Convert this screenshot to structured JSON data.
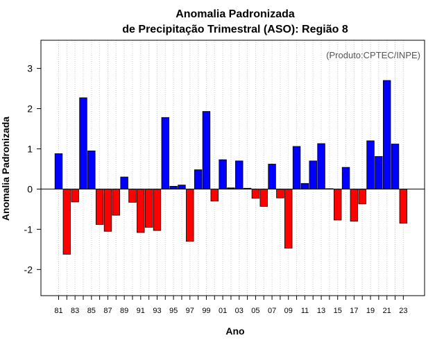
{
  "chart_data": {
    "type": "bar",
    "title_line1": "Anomalia Padronizada",
    "title_line2": "de Precipitação Trimestral (ASO): Região 8",
    "xlabel": "Ano",
    "ylabel": "Anomalia Padronizada",
    "credit": "(Produto:CPTEC/INPE)",
    "ylim": [
      -2.65,
      3.7
    ],
    "yticks": [
      "-2",
      "-1",
      "0",
      "1",
      "2",
      "3"
    ],
    "xtick_labels": [
      "81",
      "83",
      "85",
      "87",
      "89",
      "91",
      "93",
      "95",
      "97",
      "99",
      "01",
      "03",
      "05",
      "07",
      "09",
      "11",
      "13",
      "15",
      "17",
      "19",
      "21",
      "23"
    ],
    "categories": [
      "1981",
      "1982",
      "1983",
      "1984",
      "1985",
      "1986",
      "1987",
      "1988",
      "1989",
      "1990",
      "1991",
      "1992",
      "1993",
      "1994",
      "1995",
      "1996",
      "1997",
      "1998",
      "1999",
      "2000",
      "2001",
      "2002",
      "2003",
      "2004",
      "2005",
      "2006",
      "2007",
      "2008",
      "2009",
      "2010",
      "2011",
      "2012",
      "2013",
      "2014",
      "2015",
      "2016",
      "2017",
      "2018",
      "2019",
      "2020",
      "2021",
      "2022",
      "2023"
    ],
    "values": [
      0.88,
      -1.62,
      -0.32,
      2.27,
      0.95,
      -0.88,
      -1.05,
      -0.65,
      0.3,
      -0.33,
      -1.08,
      -0.95,
      -1.03,
      1.78,
      0.07,
      0.1,
      -1.3,
      0.48,
      1.93,
      -0.3,
      0.73,
      0.03,
      0.7,
      0.02,
      -0.23,
      -0.43,
      0.62,
      -0.22,
      -1.47,
      1.06,
      0.14,
      0.7,
      1.13,
      0.01,
      -0.77,
      0.54,
      -0.8,
      -0.37,
      1.2,
      0.81,
      2.7,
      1.12,
      -0.85
    ],
    "positive_color": "#0000ff",
    "negative_color": "#ff0000",
    "grid": "vertical-dotted"
  }
}
